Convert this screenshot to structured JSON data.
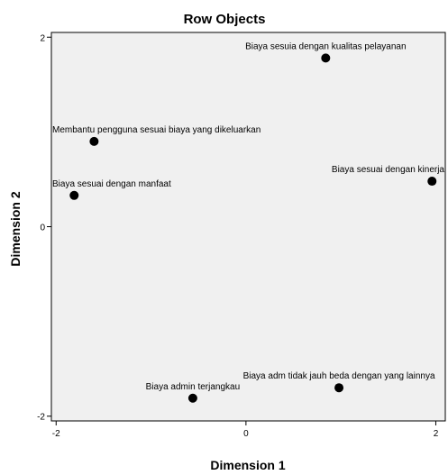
{
  "chart_data": {
    "type": "scatter",
    "title": "Row Objects",
    "xlabel": "Dimension 1",
    "ylabel": "Dimension 2",
    "xlim": [
      -2.05,
      2.1
    ],
    "ylim": [
      -2.05,
      2.05
    ],
    "xticks": [
      "-2",
      "0",
      "2"
    ],
    "yticks": [
      "2",
      "0",
      "-2"
    ],
    "grid": false,
    "points": [
      {
        "x": 0.84,
        "y": 1.78,
        "label": "Biaya sesuia dengan kualitas pelayanan"
      },
      {
        "x": -1.6,
        "y": 0.9,
        "label": "Membantu pengguna sesuai biaya yang dikeluarkan"
      },
      {
        "x": -1.81,
        "y": 0.33,
        "label": "Biaya sesuai dengan manfaat"
      },
      {
        "x": 1.96,
        "y": 0.48,
        "label": "Biaya sesuai dengan kinerja"
      },
      {
        "x": 0.98,
        "y": -1.7,
        "label": "Biaya adm tidak jauh beda dengan yang lainnya"
      },
      {
        "x": -0.56,
        "y": -1.81,
        "label": "Biaya admin terjangkau"
      }
    ]
  }
}
